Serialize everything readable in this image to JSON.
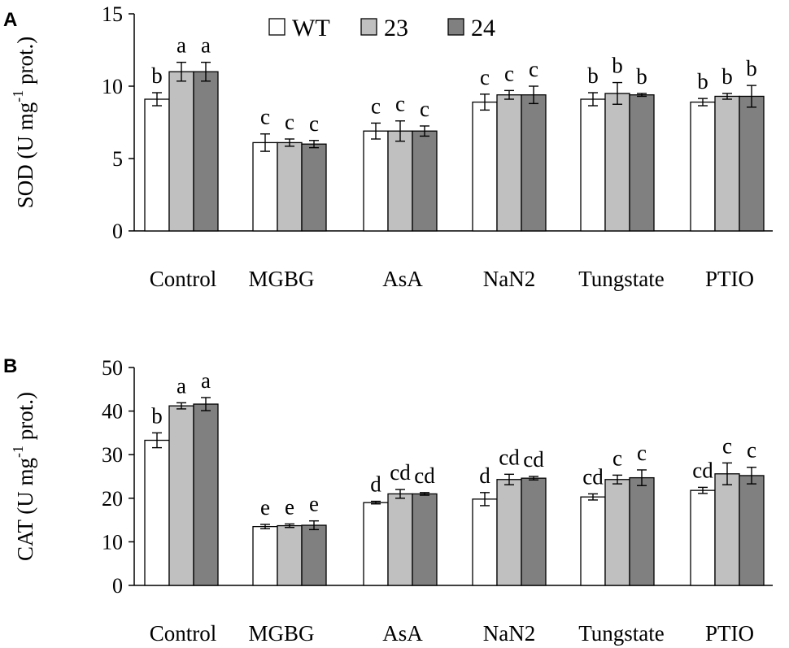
{
  "chart_data": [
    {
      "type": "bar",
      "panel": "A",
      "title": "",
      "xlabel": "",
      "ylabel": "SOD (U mg",
      "ylabel_sup": "-1",
      "ylabel_tail": " prot.)",
      "ylim": [
        0,
        15
      ],
      "yticks": [
        "0",
        "5",
        "10",
        "15"
      ],
      "yticks_values": [
        0,
        5,
        10,
        15
      ],
      "categories": [
        "Control",
        "MGBG",
        "AsA",
        "NaN2",
        "Tungstate",
        "PTIO"
      ],
      "series": [
        {
          "name": "WT",
          "color": "#ffffff",
          "values": [
            9.1,
            6.1,
            6.9,
            8.9,
            9.1,
            8.9
          ],
          "errors": [
            0.45,
            0.6,
            0.55,
            0.55,
            0.45,
            0.25
          ],
          "labels": [
            "b",
            "c",
            "c",
            "c",
            "b",
            "b"
          ]
        },
        {
          "name": "23",
          "color": "#c0c0c0",
          "values": [
            11.0,
            6.1,
            6.9,
            9.4,
            9.5,
            9.3
          ],
          "errors": [
            0.65,
            0.25,
            0.7,
            0.3,
            0.75,
            0.2
          ],
          "labels": [
            "a",
            "c",
            "c",
            "c",
            "b",
            "b"
          ]
        },
        {
          "name": "24",
          "color": "#808080",
          "values": [
            11.0,
            6.0,
            6.9,
            9.4,
            9.4,
            9.3
          ],
          "errors": [
            0.65,
            0.25,
            0.35,
            0.6,
            0.1,
            0.75
          ],
          "labels": [
            "a",
            "c",
            "c",
            "c",
            "b",
            "b"
          ]
        }
      ],
      "legend": [
        "WT",
        "23",
        "24"
      ],
      "legend_position": "top-center"
    },
    {
      "type": "bar",
      "panel": "B",
      "title": "",
      "xlabel": "",
      "ylabel": "CAT (U mg",
      "ylabel_sup": "-1",
      "ylabel_tail": " prot.)",
      "ylim": [
        0,
        50
      ],
      "yticks": [
        "0",
        "10",
        "20",
        "30",
        "40",
        "50"
      ],
      "yticks_values": [
        0,
        10,
        20,
        30,
        40,
        50
      ],
      "categories": [
        "Control",
        "MGBG",
        "AsA",
        "NaN2",
        "Tungstate",
        "PTIO"
      ],
      "series": [
        {
          "name": "WT",
          "color": "#ffffff",
          "values": [
            33.3,
            13.5,
            19.0,
            19.8,
            20.3,
            21.8
          ],
          "errors": [
            1.7,
            0.5,
            0.3,
            1.5,
            0.7,
            0.7
          ],
          "labels": [
            "b",
            "e",
            "d",
            "d",
            "cd",
            "cd"
          ]
        },
        {
          "name": "23",
          "color": "#c0c0c0",
          "values": [
            41.2,
            13.7,
            21.0,
            24.3,
            24.3,
            25.6
          ],
          "errors": [
            0.7,
            0.4,
            1.0,
            1.2,
            1.0,
            2.5
          ],
          "labels": [
            "a",
            "e",
            "cd",
            "cd",
            "c",
            "c"
          ]
        },
        {
          "name": "24",
          "color": "#808080",
          "values": [
            41.6,
            13.8,
            21.0,
            24.6,
            24.7,
            25.2
          ],
          "errors": [
            1.5,
            1.0,
            0.3,
            0.4,
            1.8,
            1.9
          ],
          "labels": [
            "a",
            "e",
            "cd",
            "cd",
            "c",
            "c"
          ]
        }
      ],
      "legend": [],
      "legend_position": "none"
    }
  ],
  "panel_letters": [
    "A",
    "B"
  ]
}
